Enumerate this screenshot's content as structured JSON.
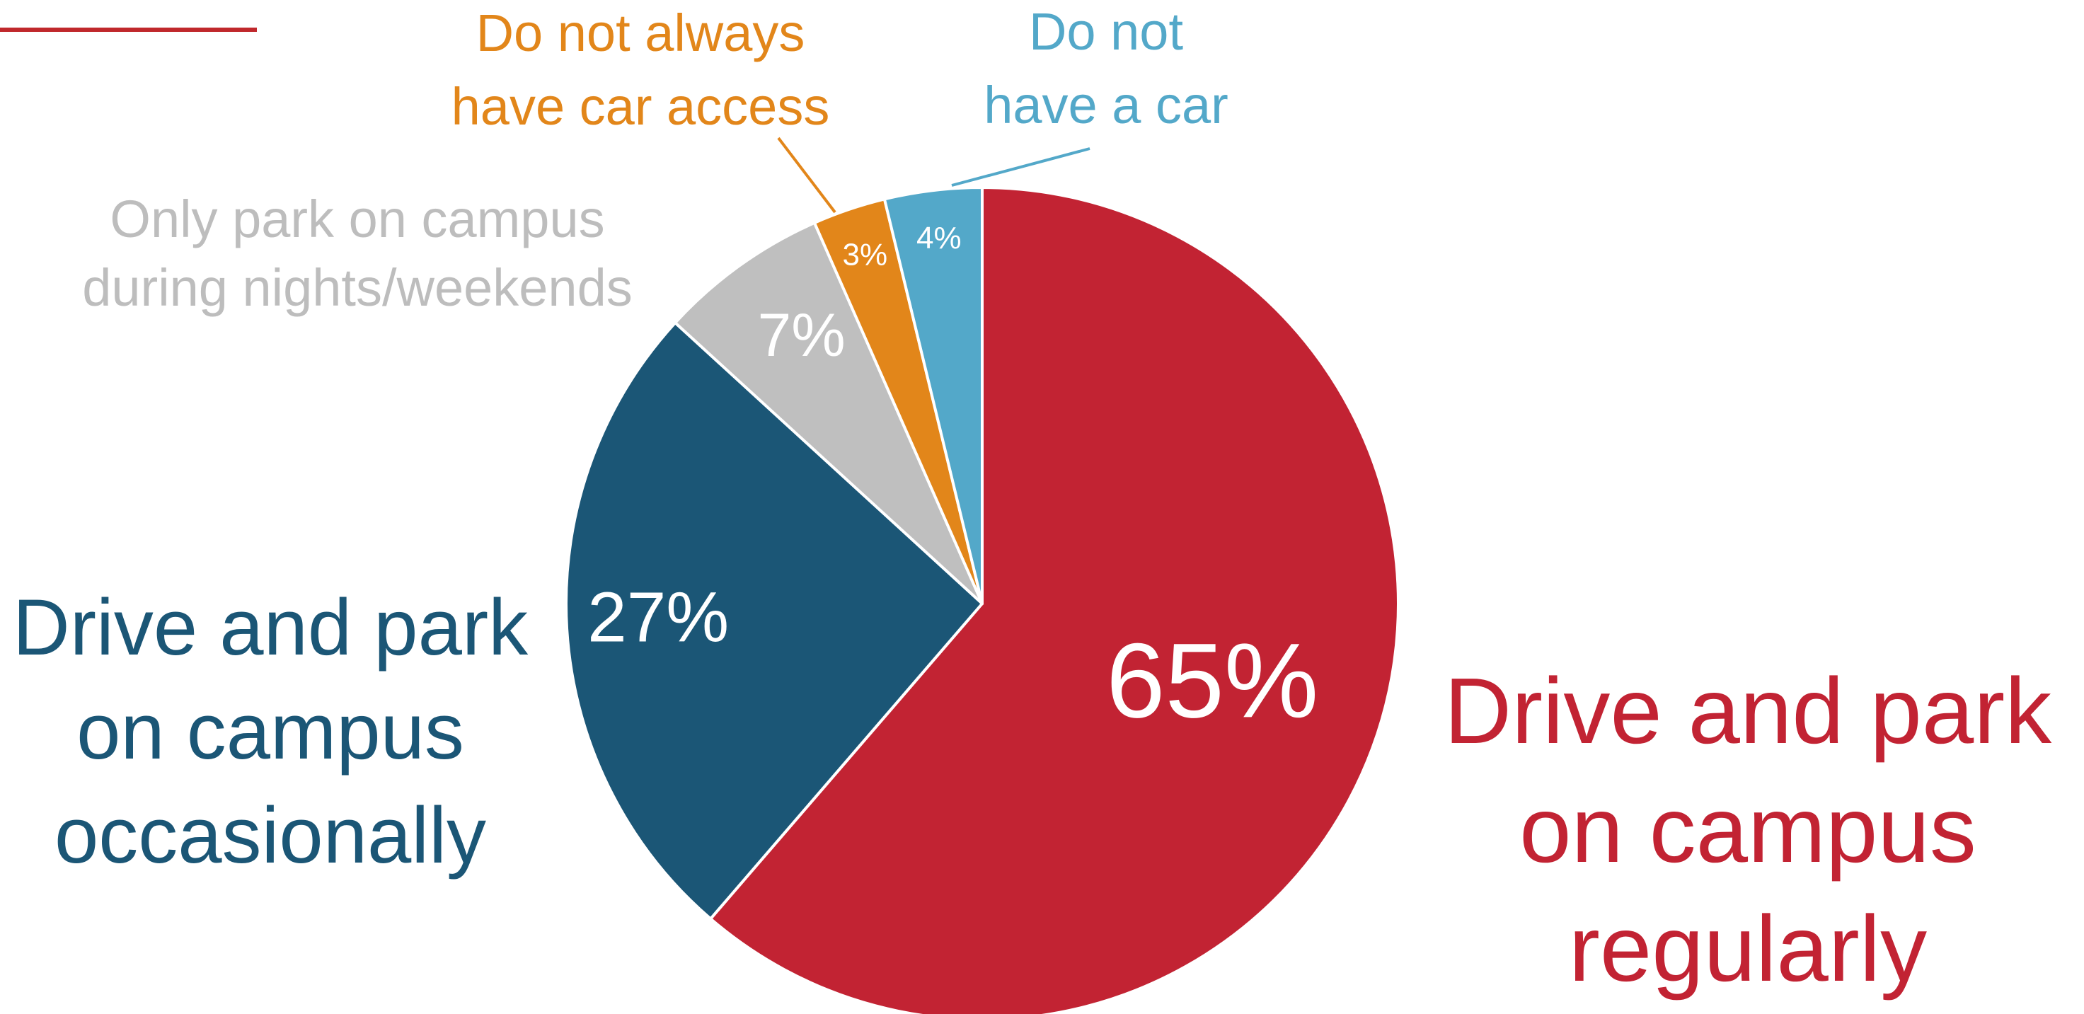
{
  "chart_data": {
    "type": "pie",
    "title": "",
    "slices": [
      {
        "label_lines": [
          "Drive and park",
          "on campus",
          "regularly"
        ],
        "value": 65,
        "value_label": "65%",
        "color": "#c22333"
      },
      {
        "label_lines": [
          "Drive and park",
          "on campus",
          "occasionally"
        ],
        "value": 27,
        "value_label": "27%",
        "color": "#1b5676"
      },
      {
        "label_lines": [
          "Only park on campus",
          "during nights/weekends"
        ],
        "value": 7,
        "value_label": "7%",
        "color": "#bfbfbf"
      },
      {
        "label_lines": [
          "Do not always",
          "have car access"
        ],
        "value": 3,
        "value_label": "3%",
        "color": "#e2861a"
      },
      {
        "label_lines": [
          "Do not",
          "have a car"
        ],
        "value": 4,
        "value_label": "4%",
        "color": "#53a8c9"
      }
    ],
    "label_colors": [
      "#c22333",
      "#1b5676",
      "#bdbdbd",
      "#e2861a",
      "#53a8c9"
    ],
    "value_label_color": "#ffffff",
    "leader_lines": [
      false,
      false,
      false,
      true,
      true
    ],
    "accent_line_color": "#c0282c"
  }
}
